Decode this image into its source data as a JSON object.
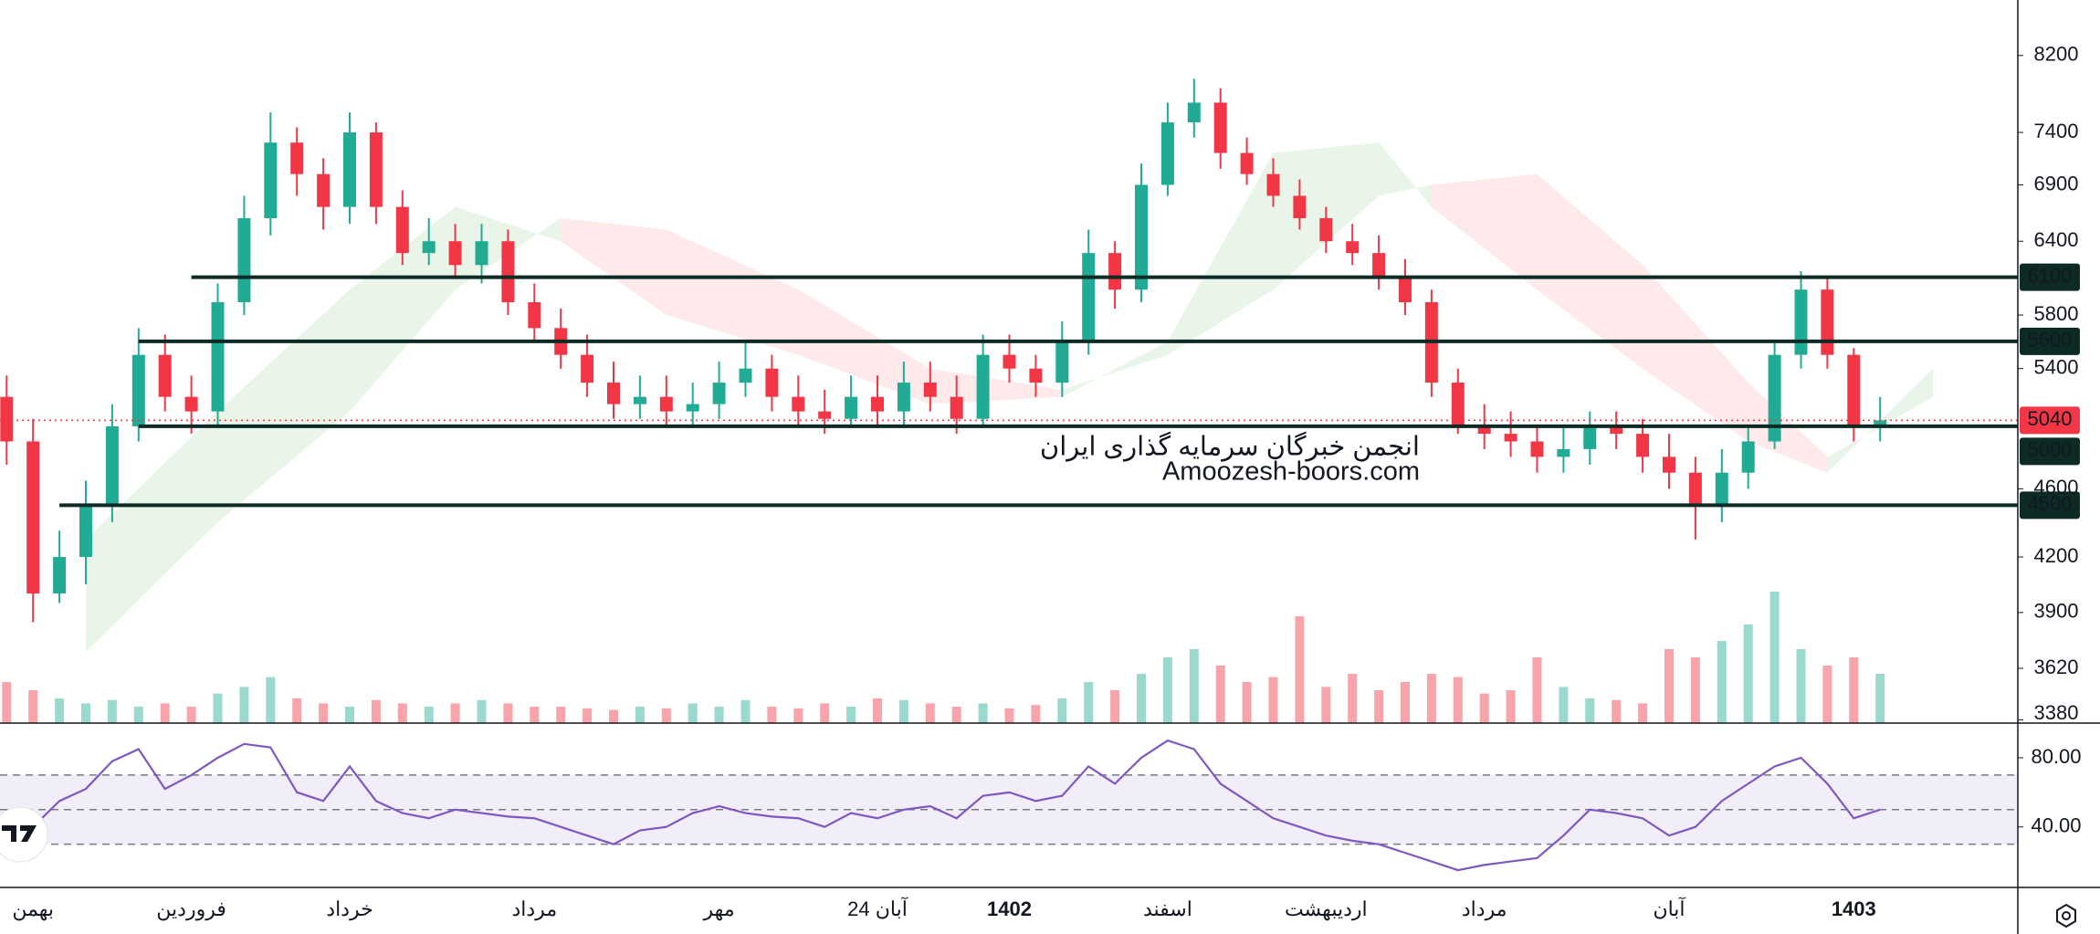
{
  "chart_data": {
    "type": "candlestick",
    "categories": [
      null,
      "بهمن",
      null,
      null,
      null,
      null,
      null,
      "فروردین",
      null,
      null,
      null,
      null,
      null,
      "خرداد",
      null,
      null,
      null,
      null,
      null,
      null,
      "مرداد",
      null,
      null,
      null,
      null,
      null,
      null,
      "مهر",
      null,
      null,
      null,
      null,
      null,
      "24 آبان",
      null,
      null,
      null,
      null,
      "1402",
      null,
      null,
      null,
      null,
      null,
      "اسفند",
      null,
      null,
      null,
      null,
      null,
      "اردیبهشت",
      null,
      null,
      null,
      null,
      null,
      "مرداد",
      null,
      null,
      null,
      null,
      null,
      null,
      "آبان",
      null,
      null,
      null,
      null,
      null,
      null,
      "1403",
      null
    ],
    "bold_categories": [
      38,
      70
    ],
    "open": [
      5200,
      4900,
      4000,
      4200,
      4500,
      5000,
      5500,
      5200,
      5100,
      5900,
      6600,
      7300,
      7000,
      6700,
      7400,
      6700,
      6300,
      6400,
      6200,
      6400,
      5900,
      5700,
      5500,
      5300,
      5150,
      5200,
      5100,
      5150,
      5300,
      5400,
      5200,
      5100,
      5050,
      5200,
      5100,
      5300,
      5200,
      5050,
      5500,
      5400,
      5300,
      5600,
      6300,
      6000,
      6900,
      7500,
      7700,
      7200,
      7000,
      6800,
      6600,
      6400,
      6300,
      6100,
      5900,
      5300,
      5000,
      4950,
      4900,
      4800,
      4850,
      5000,
      4950,
      4800,
      4700,
      4500,
      4700,
      4900,
      5500,
      6000,
      5500,
      5000
    ],
    "high": [
      5350,
      5050,
      4350,
      4650,
      5150,
      5700,
      5650,
      5350,
      6050,
      6800,
      7600,
      7450,
      7150,
      7600,
      7500,
      6850,
      6600,
      6550,
      6550,
      6500,
      6050,
      5850,
      5650,
      5450,
      5350,
      5350,
      5300,
      5450,
      5600,
      5500,
      5350,
      5250,
      5350,
      5350,
      5450,
      5450,
      5350,
      5650,
      5650,
      5500,
      5750,
      6500,
      6400,
      7100,
      7700,
      7950,
      7850,
      7350,
      7150,
      6950,
      6700,
      6550,
      6450,
      6250,
      6000,
      5400,
      5150,
      5100,
      5000,
      5000,
      5100,
      5100,
      5050,
      4950,
      4800,
      4850,
      5000,
      5600,
      6150,
      6100,
      5550,
      5200
    ],
    "low": [
      4750,
      3850,
      3950,
      4050,
      4400,
      4900,
      5100,
      4950,
      5000,
      5800,
      6450,
      6800,
      6500,
      6550,
      6550,
      6200,
      6200,
      6100,
      6050,
      5800,
      5600,
      5400,
      5200,
      5050,
      5050,
      5000,
      5000,
      5050,
      5200,
      5100,
      5000,
      4950,
      5000,
      5000,
      5000,
      5100,
      4950,
      5000,
      5300,
      5200,
      5200,
      5500,
      5850,
      5900,
      6800,
      7350,
      7050,
      6900,
      6700,
      6500,
      6300,
      6200,
      6000,
      5800,
      5200,
      4950,
      4850,
      4800,
      4700,
      4700,
      4750,
      4850,
      4700,
      4600,
      4300,
      4400,
      4600,
      4850,
      5400,
      5400,
      4900,
      4900
    ],
    "close": [
      4900,
      4000,
      4200,
      4500,
      5000,
      5500,
      5200,
      5100,
      5900,
      6600,
      7300,
      7000,
      6700,
      7400,
      6700,
      6300,
      6400,
      6200,
      6400,
      5900,
      5700,
      5500,
      5300,
      5150,
      5200,
      5100,
      5150,
      5300,
      5400,
      5200,
      5100,
      5050,
      5200,
      5100,
      5300,
      5200,
      5050,
      5500,
      5400,
      5300,
      5600,
      6300,
      6000,
      6900,
      7500,
      7700,
      7200,
      7000,
      6800,
      6600,
      6400,
      6300,
      6100,
      5900,
      5300,
      5000,
      4950,
      4900,
      4800,
      4850,
      5000,
      4950,
      4800,
      4700,
      4500,
      4700,
      4900,
      5500,
      6000,
      5500,
      5000,
      5040
    ],
    "volume": [
      25,
      20,
      15,
      12,
      14,
      10,
      12,
      10,
      18,
      22,
      28,
      15,
      12,
      10,
      14,
      12,
      10,
      12,
      14,
      12,
      10,
      10,
      9,
      8,
      10,
      9,
      12,
      10,
      14,
      10,
      9,
      12,
      10,
      15,
      14,
      12,
      10,
      12,
      9,
      11,
      15,
      25,
      20,
      30,
      40,
      45,
      35,
      25,
      28,
      65,
      22,
      30,
      20,
      25,
      30,
      28,
      18,
      20,
      40,
      22,
      15,
      14,
      12,
      45,
      40,
      50,
      60,
      80,
      45,
      35,
      40,
      30
    ],
    "volume_lim": [
      0,
      100
    ],
    "up_color": "#22ab94",
    "down_color": "#f23645",
    "log_scale": true,
    "ylim": [
      3365,
      8830
    ],
    "yticks": [
      8200,
      7400,
      6900,
      6400,
      5800,
      5400,
      4600,
      4200,
      3900,
      3620,
      3380
    ],
    "levels": [
      {
        "value": 6100,
        "from_index": 7
      },
      {
        "value": 5600,
        "from_index": 5
      },
      {
        "value": 5000,
        "from_index": 5
      },
      {
        "value": 4500,
        "from_index": 2
      }
    ],
    "cloud": {
      "x": [
        3,
        8,
        13,
        17,
        21,
        25,
        30,
        35,
        40,
        44,
        48,
        52,
        54,
        58,
        62,
        66,
        69,
        73
      ],
      "span_a": [
        4300,
        5100,
        6000,
        6700,
        6400,
        5800,
        5500,
        5150,
        5200,
        5600,
        7200,
        7300,
        6700,
        6000,
        5400,
        4900,
        4700,
        5400
      ],
      "span_b": [
        3700,
        4400,
        5100,
        6000,
        6600,
        6500,
        6000,
        5400,
        5250,
        5500,
        6000,
        6800,
        6900,
        7000,
        6200,
        5300,
        4800,
        5200
      ]
    },
    "watermark": [
      "انجمن خبرگان سرمایه گذاری ایران",
      "Amoozesh-boors.com"
    ],
    "rsi": {
      "values": [
        50,
        40,
        55,
        62,
        78,
        85,
        62,
        70,
        80,
        88,
        86,
        60,
        55,
        75,
        55,
        48,
        45,
        50,
        48,
        46,
        45,
        40,
        35,
        30,
        38,
        40,
        48,
        52,
        48,
        46,
        45,
        40,
        48,
        45,
        50,
        52,
        45,
        58,
        60,
        55,
        58,
        75,
        65,
        80,
        90,
        85,
        65,
        55,
        45,
        40,
        35,
        32,
        30,
        25,
        20,
        15,
        18,
        20,
        22,
        35,
        50,
        48,
        45,
        35,
        40,
        55,
        65,
        75,
        80,
        65,
        45,
        50
      ],
      "color": "#7e57c2",
      "ylim": [
        5,
        99
      ],
      "band": [
        30,
        70
      ],
      "mid": 50,
      "yticks": [
        {
          "value": 80,
          "label": "80.00"
        },
        {
          "value": 40,
          "label": "40.00"
        }
      ]
    }
  }
}
